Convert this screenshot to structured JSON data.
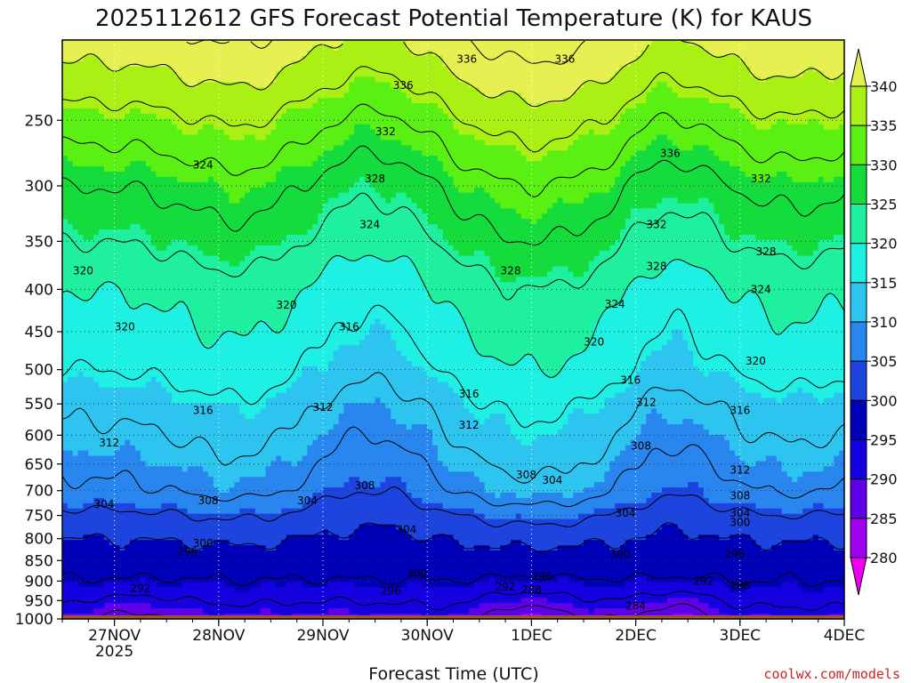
{
  "chart_data": {
    "type": "heatmap",
    "title": "2025112612 GFS Forecast Potential Temperature (K) for KAUS",
    "xlabel": "Forecast Time (UTC)",
    "ylabel": "",
    "credit": "coolwx.com/models",
    "x_ticks": [
      {
        "label": "27NOV",
        "sub": "2025",
        "day": 1
      },
      {
        "label": "28NOV",
        "sub": "",
        "day": 2
      },
      {
        "label": "29NOV",
        "sub": "",
        "day": 3
      },
      {
        "label": "30NOV",
        "sub": "",
        "day": 4
      },
      {
        "label": "1DEC",
        "sub": "",
        "day": 5
      },
      {
        "label": "2DEC",
        "sub": "",
        "day": 6
      },
      {
        "label": "3DEC",
        "sub": "",
        "day": 7
      },
      {
        "label": "4DEC",
        "sub": "",
        "day": 8
      }
    ],
    "xlim_days": [
      0.5,
      8.0
    ],
    "y_ticks": [
      250,
      300,
      350,
      400,
      450,
      500,
      550,
      600,
      650,
      700,
      750,
      800,
      850,
      900,
      950,
      1000
    ],
    "ylim_hpa": [
      200,
      1000
    ],
    "y_scale": "log",
    "surface_hpa": 990,
    "colorbar": {
      "levels": [
        280,
        285,
        290,
        295,
        300,
        305,
        310,
        315,
        320,
        325,
        330,
        335,
        340
      ],
      "colors": [
        "#f000f0",
        "#a000f0",
        "#6000e8",
        "#1400e0",
        "#0000b8",
        "#1e44e0",
        "#2886ee",
        "#2ec4f0",
        "#1ef0e4",
        "#1ef0a0",
        "#14dc3c",
        "#5af014",
        "#aaf014",
        "#e6f050"
      ],
      "labels": [
        "280",
        "285",
        "290",
        "295",
        "300",
        "305",
        "310",
        "315",
        "320",
        "325",
        "330",
        "335",
        "340"
      ]
    },
    "grid": true,
    "contour_interval_K": 4,
    "profile_hpa": [
      200,
      250,
      300,
      350,
      400,
      450,
      500,
      550,
      600,
      650,
      700,
      750,
      800,
      850,
      900,
      950,
      1000
    ],
    "profile_theta": [
      342,
      334,
      328,
      324,
      320,
      318,
      316,
      313,
      311,
      309,
      307,
      303,
      300,
      298,
      296,
      293,
      290
    ],
    "contour_labels": [
      {
        "text": "336",
        "day": 4.38,
        "hpa": 211
      },
      {
        "text": "336",
        "day": 5.32,
        "hpa": 211
      },
      {
        "text": "336",
        "day": 3.77,
        "hpa": 227
      },
      {
        "text": "336",
        "day": 6.33,
        "hpa": 274
      },
      {
        "text": "332",
        "day": 3.6,
        "hpa": 258
      },
      {
        "text": "332",
        "day": 7.2,
        "hpa": 294
      },
      {
        "text": "332",
        "day": 6.2,
        "hpa": 334
      },
      {
        "text": "324",
        "day": 1.85,
        "hpa": 283
      },
      {
        "text": "328",
        "day": 3.5,
        "hpa": 294
      },
      {
        "text": "324",
        "day": 3.45,
        "hpa": 334
      },
      {
        "text": "328",
        "day": 7.25,
        "hpa": 360
      },
      {
        "text": "328",
        "day": 6.2,
        "hpa": 375
      },
      {
        "text": "328",
        "day": 4.8,
        "hpa": 380
      },
      {
        "text": "324",
        "day": 7.2,
        "hpa": 400
      },
      {
        "text": "324",
        "day": 5.8,
        "hpa": 417
      },
      {
        "text": "320",
        "day": 0.7,
        "hpa": 380
      },
      {
        "text": "320",
        "day": 2.65,
        "hpa": 418
      },
      {
        "text": "320",
        "day": 1.1,
        "hpa": 444
      },
      {
        "text": "316",
        "day": 3.25,
        "hpa": 444
      },
      {
        "text": "320",
        "day": 5.6,
        "hpa": 463
      },
      {
        "text": "320",
        "day": 7.15,
        "hpa": 488
      },
      {
        "text": "316",
        "day": 5.95,
        "hpa": 515
      },
      {
        "text": "316",
        "day": 4.4,
        "hpa": 535
      },
      {
        "text": "312",
        "day": 6.1,
        "hpa": 548
      },
      {
        "text": "316",
        "day": 7.0,
        "hpa": 560
      },
      {
        "text": "316",
        "day": 1.85,
        "hpa": 560
      },
      {
        "text": "312",
        "day": 3.0,
        "hpa": 555
      },
      {
        "text": "312",
        "day": 4.4,
        "hpa": 583
      },
      {
        "text": "312",
        "day": 0.95,
        "hpa": 613
      },
      {
        "text": "308",
        "day": 6.05,
        "hpa": 618
      },
      {
        "text": "312",
        "day": 7.0,
        "hpa": 661
      },
      {
        "text": "308",
        "day": 4.95,
        "hpa": 670
      },
      {
        "text": "304",
        "day": 5.2,
        "hpa": 680
      },
      {
        "text": "308",
        "day": 3.4,
        "hpa": 690
      },
      {
        "text": "308",
        "day": 7.0,
        "hpa": 710
      },
      {
        "text": "308",
        "day": 1.9,
        "hpa": 720
      },
      {
        "text": "304",
        "day": 2.85,
        "hpa": 720
      },
      {
        "text": "304",
        "day": 0.9,
        "hpa": 727
      },
      {
        "text": "304",
        "day": 5.9,
        "hpa": 745
      },
      {
        "text": "304",
        "day": 7.0,
        "hpa": 745
      },
      {
        "text": "300",
        "day": 7.0,
        "hpa": 765
      },
      {
        "text": "304",
        "day": 3.8,
        "hpa": 780
      },
      {
        "text": "300",
        "day": 1.85,
        "hpa": 810
      },
      {
        "text": "296",
        "day": 1.7,
        "hpa": 830
      },
      {
        "text": "300",
        "day": 5.85,
        "hpa": 835
      },
      {
        "text": "296",
        "day": 6.95,
        "hpa": 835
      },
      {
        "text": "300",
        "day": 3.9,
        "hpa": 880
      },
      {
        "text": "296",
        "day": 5.1,
        "hpa": 888
      },
      {
        "text": "292",
        "day": 6.65,
        "hpa": 900
      },
      {
        "text": "288",
        "day": 7.0,
        "hpa": 912
      },
      {
        "text": "292",
        "day": 1.25,
        "hpa": 918
      },
      {
        "text": "292",
        "day": 4.75,
        "hpa": 915
      },
      {
        "text": "288",
        "day": 5.0,
        "hpa": 922
      },
      {
        "text": "296",
        "day": 3.65,
        "hpa": 925
      },
      {
        "text": "284",
        "day": 6.0,
        "hpa": 965
      }
    ]
  }
}
